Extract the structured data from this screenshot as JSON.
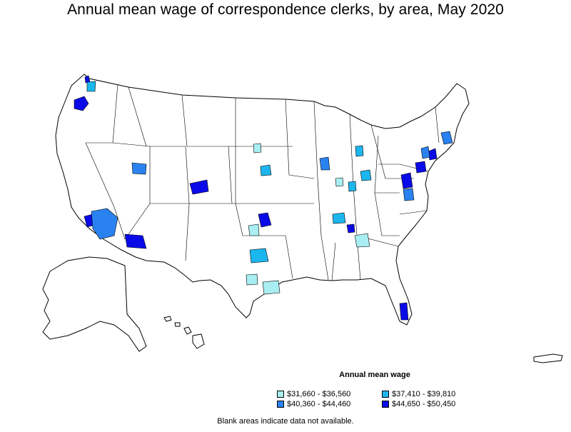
{
  "title": "Annual mean wage of correspondence clerks, by area, May 2020",
  "legend": {
    "title": "Annual mean wage",
    "items": [
      {
        "label": "$31,660 - $36,560",
        "color": "#a8eef2"
      },
      {
        "label": "$37,410 - $39,810",
        "color": "#1cb6ee"
      },
      {
        "label": "$40,360 - $44,460",
        "color": "#2a82f0"
      },
      {
        "label": "$44,650 - $50,450",
        "color": "#0a0ae8"
      }
    ]
  },
  "footnote": "Blank areas indicate data not available.",
  "colors": {
    "background": "#ffffff",
    "border": "#000000",
    "no_data": "#ffffff"
  }
}
